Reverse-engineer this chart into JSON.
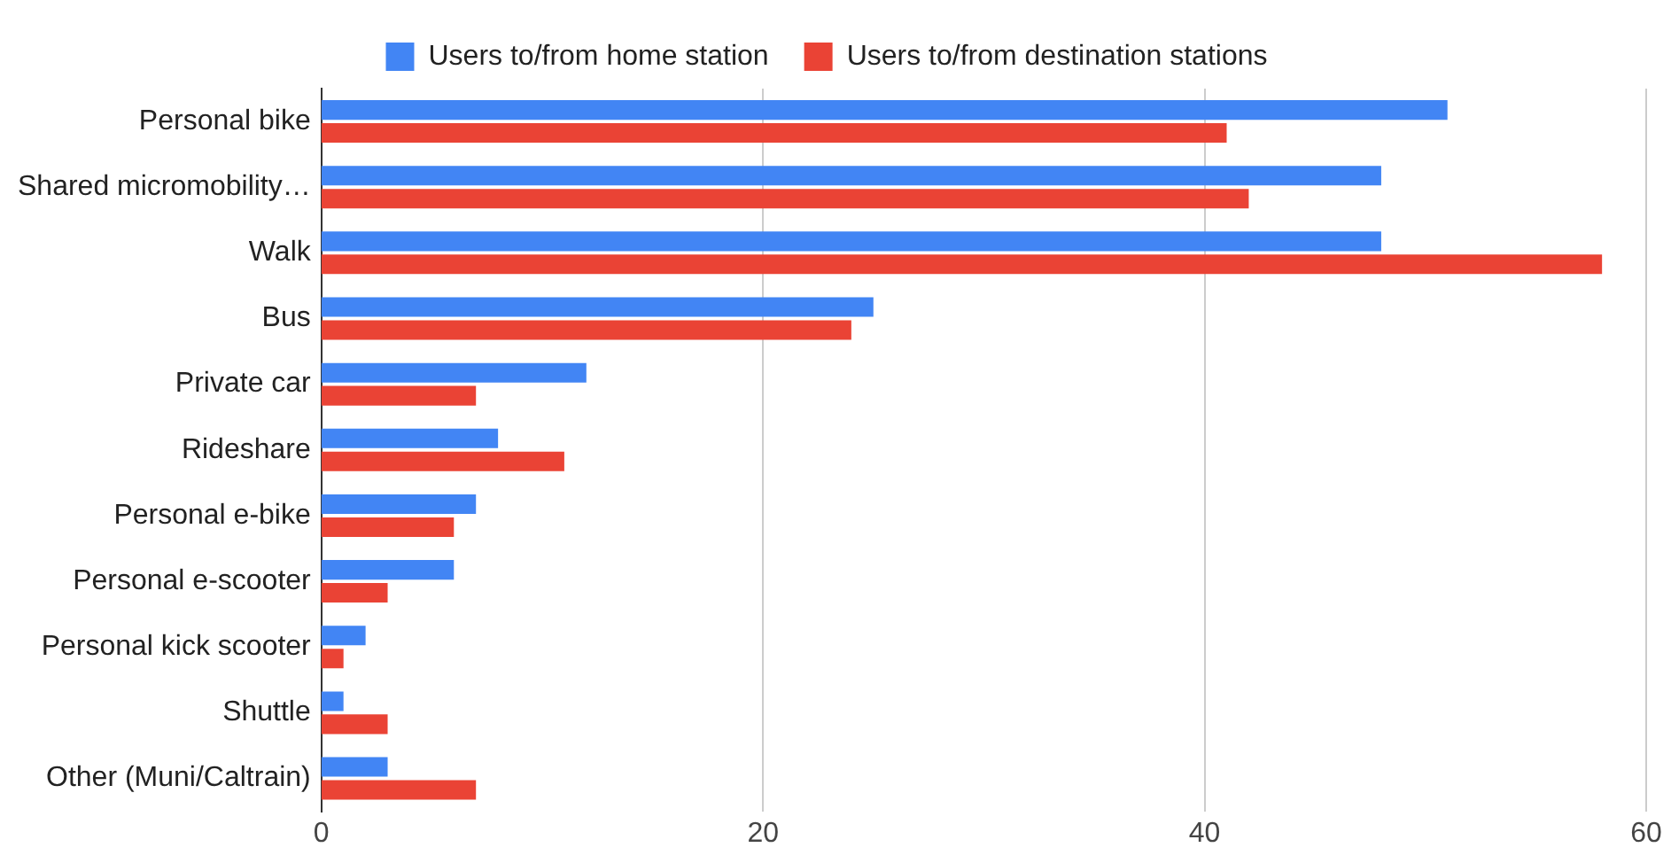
{
  "chart_data": {
    "type": "bar",
    "orientation": "horizontal",
    "categories": [
      "Personal bike",
      "Shared micromobility…",
      "Walk",
      "Bus",
      "Private car",
      "Rideshare",
      "Personal e-bike",
      "Personal e-scooter",
      "Personal kick scooter",
      "Shuttle",
      "Other (Muni/Caltrain)"
    ],
    "series": [
      {
        "name": "Users to/from home station",
        "color": "#4285f4",
        "values": [
          51,
          48,
          48,
          25,
          12,
          8,
          7,
          6,
          2,
          1,
          3
        ]
      },
      {
        "name": "Users to/from destination stations",
        "color": "#ea4335",
        "values": [
          41,
          42,
          58,
          24,
          7,
          11,
          6,
          3,
          1,
          3,
          7
        ]
      }
    ],
    "xlim": [
      0,
      60
    ],
    "xticks": [
      0,
      20,
      40,
      60
    ],
    "grid": "x",
    "legend": "top"
  }
}
